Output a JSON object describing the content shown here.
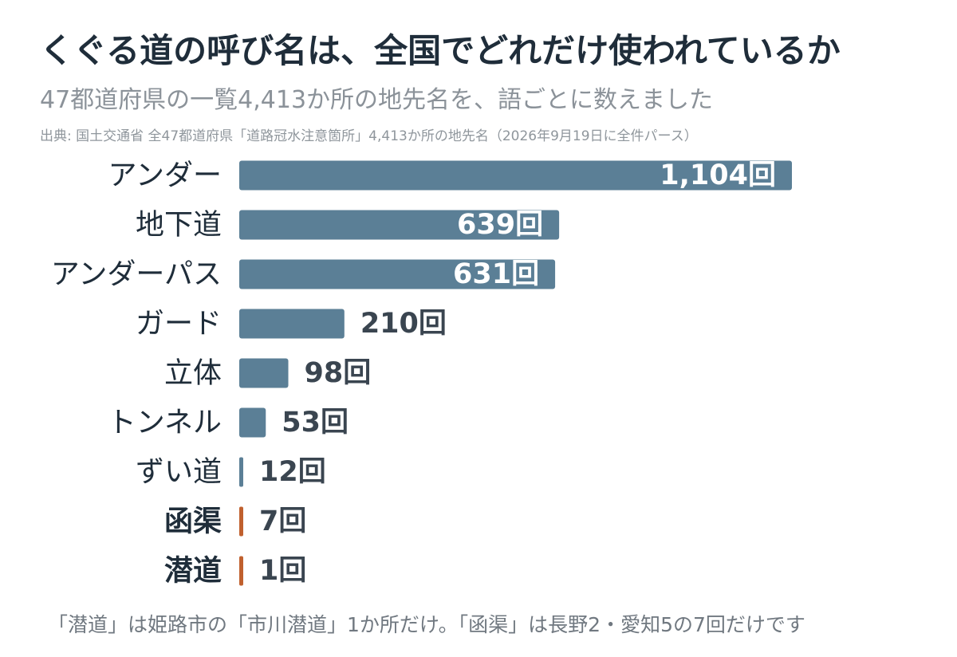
{
  "colors": {
    "bar": "#5b7f96",
    "highlight": "#c0602e",
    "value_inside": "#ffffff",
    "value_outside": "#3a4550",
    "label": "#1f2d3a"
  },
  "header": {
    "title": "くぐる道の呼び名は、全国でどれだけ使われているか",
    "subtitle": "47都道府県の一覧4,413か所の地先名を、語ごとに数えました",
    "source": "出典: 国土交通省 全47都道府県「道路冠水注意箇所」4,413か所の地先名（2026年9月19日に全件パース）"
  },
  "footnote": "「潜道」は姫路市の「市川潜道」1か所だけ。「函渠」は長野2・愛知5の7回だけです",
  "chart_data": {
    "type": "bar",
    "orientation": "horizontal",
    "xlim": [
      0,
      1104
    ],
    "categories": [
      "アンダー",
      "地下道",
      "アンダーパス",
      "ガード",
      "立体",
      "トンネル",
      "ずい道",
      "函渠",
      "潜道"
    ],
    "values": [
      1104,
      639,
      631,
      210,
      98,
      53,
      12,
      7,
      1
    ],
    "value_labels": [
      "1,104回",
      "639回",
      "631回",
      "210回",
      "98回",
      "53回",
      "12回",
      "7回",
      "1回"
    ],
    "highlighted": [
      false,
      false,
      false,
      false,
      false,
      false,
      false,
      true,
      true
    ],
    "label_inside": [
      true,
      true,
      true,
      false,
      false,
      false,
      false,
      false,
      false
    ]
  }
}
